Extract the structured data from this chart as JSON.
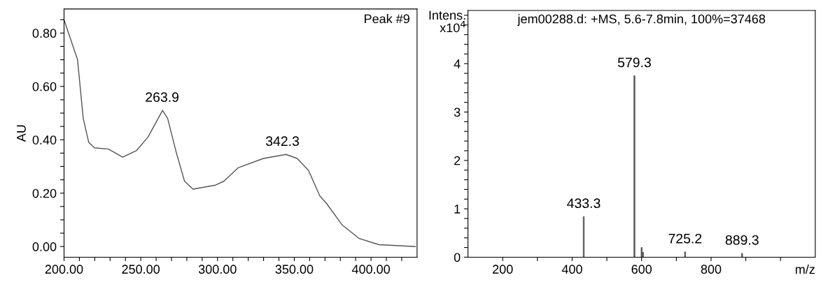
{
  "chart_data": [
    {
      "type": "line",
      "ylabel": "AU",
      "annotations": [
        "Peak #9",
        {
          "text": "263.9",
          "x": 263.9,
          "y": 0.51
        },
        {
          "text": "342.3",
          "x": 342.3,
          "y": 0.345
        }
      ],
      "x": [
        200,
        208.8,
        212.5,
        216.1,
        219.8,
        229,
        238.2,
        247.3,
        254.7,
        264.2,
        267.5,
        273,
        278.5,
        284,
        298.7,
        304.2,
        313.4,
        329.9,
        344.6,
        351.9,
        359.3,
        366.6,
        371.2,
        381.3,
        392.3,
        405.1,
        428.9
      ],
      "series": [
        {
          "color": "#555555",
          "values": [
            0.85,
            0.7,
            0.48,
            0.39,
            0.37,
            0.365,
            0.335,
            0.36,
            0.41,
            0.51,
            0.48,
            0.355,
            0.245,
            0.215,
            0.23,
            0.245,
            0.295,
            0.33,
            0.345,
            0.33,
            0.285,
            0.19,
            0.16,
            0.08,
            0.03,
            0.007,
            0.0
          ]
        }
      ],
      "xlim": [
        200,
        430
      ],
      "ylim": [
        -0.04,
        0.89
      ],
      "xticks": [
        {
          "value": 200,
          "label": "200.00"
        },
        {
          "value": 210,
          "label": null
        },
        {
          "value": 220,
          "label": null
        },
        {
          "value": 230,
          "label": null
        },
        {
          "value": 240,
          "label": null
        },
        {
          "value": 250,
          "label": "250.00"
        },
        {
          "value": 260,
          "label": null
        },
        {
          "value": 270,
          "label": null
        },
        {
          "value": 280,
          "label": null
        },
        {
          "value": 290,
          "label": null
        },
        {
          "value": 300,
          "label": "300.00"
        },
        {
          "value": 310,
          "label": null
        },
        {
          "value": 320,
          "label": null
        },
        {
          "value": 330,
          "label": null
        },
        {
          "value": 340,
          "label": null
        },
        {
          "value": 350,
          "label": "350.00"
        },
        {
          "value": 360,
          "label": null
        },
        {
          "value": 370,
          "label": null
        },
        {
          "value": 380,
          "label": null
        },
        {
          "value": 390,
          "label": null
        },
        {
          "value": 400,
          "label": "400.00"
        },
        {
          "value": 410,
          "label": null
        },
        {
          "value": 420,
          "label": null
        }
      ],
      "yticks": [
        {
          "value": 0,
          "label": "0.00"
        },
        {
          "value": 0.05,
          "label": null
        },
        {
          "value": 0.1,
          "label": null
        },
        {
          "value": 0.15,
          "label": null
        },
        {
          "value": 0.2,
          "label": "0.20"
        },
        {
          "value": 0.25,
          "label": null
        },
        {
          "value": 0.3,
          "label": null
        },
        {
          "value": 0.35,
          "label": null
        },
        {
          "value": 0.4,
          "label": "0.40"
        },
        {
          "value": 0.45,
          "label": null
        },
        {
          "value": 0.5,
          "label": null
        },
        {
          "value": 0.55,
          "label": null
        },
        {
          "value": 0.6,
          "label": "0.60"
        },
        {
          "value": 0.65,
          "label": null
        },
        {
          "value": 0.7,
          "label": null
        },
        {
          "value": 0.75,
          "label": null
        },
        {
          "value": 0.8,
          "label": "0.80"
        },
        {
          "value": 0.85,
          "label": null
        }
      ],
      "grid": false,
      "legend": false
    },
    {
      "type": "bar",
      "ylabel": "Intens.\nx10$^{4}$",
      "xlabel": "m/z",
      "annotations": [
        "jem00288.d: +MS, 5.6-7.8min, 100%=37468",
        {
          "text": "433.3",
          "x": 433.3,
          "y": 0.84
        },
        {
          "text": "579.3",
          "x": 579.3,
          "y": 3.75
        },
        {
          "text": "725.2",
          "x": 725.2,
          "y": 0.11
        },
        {
          "text": "889.3",
          "x": 889.3,
          "y": 0.08
        }
      ],
      "x": [
        433.3,
        579.3,
        600,
        604,
        725.2,
        889.3
      ],
      "series": [
        {
          "color": "#555555",
          "values": [
            0.84,
            3.75,
            0.2,
            0.1,
            0.11,
            0.08
          ]
        }
      ],
      "xlim": [
        100,
        1100
      ],
      "ylim": [
        0,
        5.1
      ],
      "xticks": [
        200,
        {
          "value": 300,
          "label": null
        },
        400,
        {
          "value": 500,
          "label": null
        },
        600,
        {
          "value": 700,
          "label": null
        },
        800,
        {
          "value": 900,
          "label": null
        },
        {
          "value": 1000,
          "label": null
        }
      ],
      "yticks": [
        0,
        {
          "value": 0.2,
          "label": null
        },
        {
          "value": 0.4,
          "label": null
        },
        {
          "value": 0.6,
          "label": null
        },
        {
          "value": 0.8,
          "label": null
        },
        1,
        {
          "value": 1.2,
          "label": null
        },
        {
          "value": 1.4,
          "label": null
        },
        {
          "value": 1.6,
          "label": null
        },
        {
          "value": 1.8,
          "label": null
        },
        2,
        {
          "value": 2.2,
          "label": null
        },
        {
          "value": 2.4,
          "label": null
        },
        {
          "value": 2.6,
          "label": null
        },
        {
          "value": 2.8,
          "label": null
        },
        3,
        {
          "value": 3.2,
          "label": null
        },
        {
          "value": 3.4,
          "label": null
        },
        {
          "value": 3.6,
          "label": null
        },
        {
          "value": 3.8,
          "label": null
        },
        4,
        {
          "value": 4.2,
          "label": null
        },
        {
          "value": 4.4,
          "label": null
        },
        {
          "value": 4.6,
          "label": null
        },
        {
          "value": 4.8,
          "label": null
        },
        {
          "value": 5.0,
          "label": null
        }
      ],
      "grid": false,
      "legend": false
    }
  ]
}
